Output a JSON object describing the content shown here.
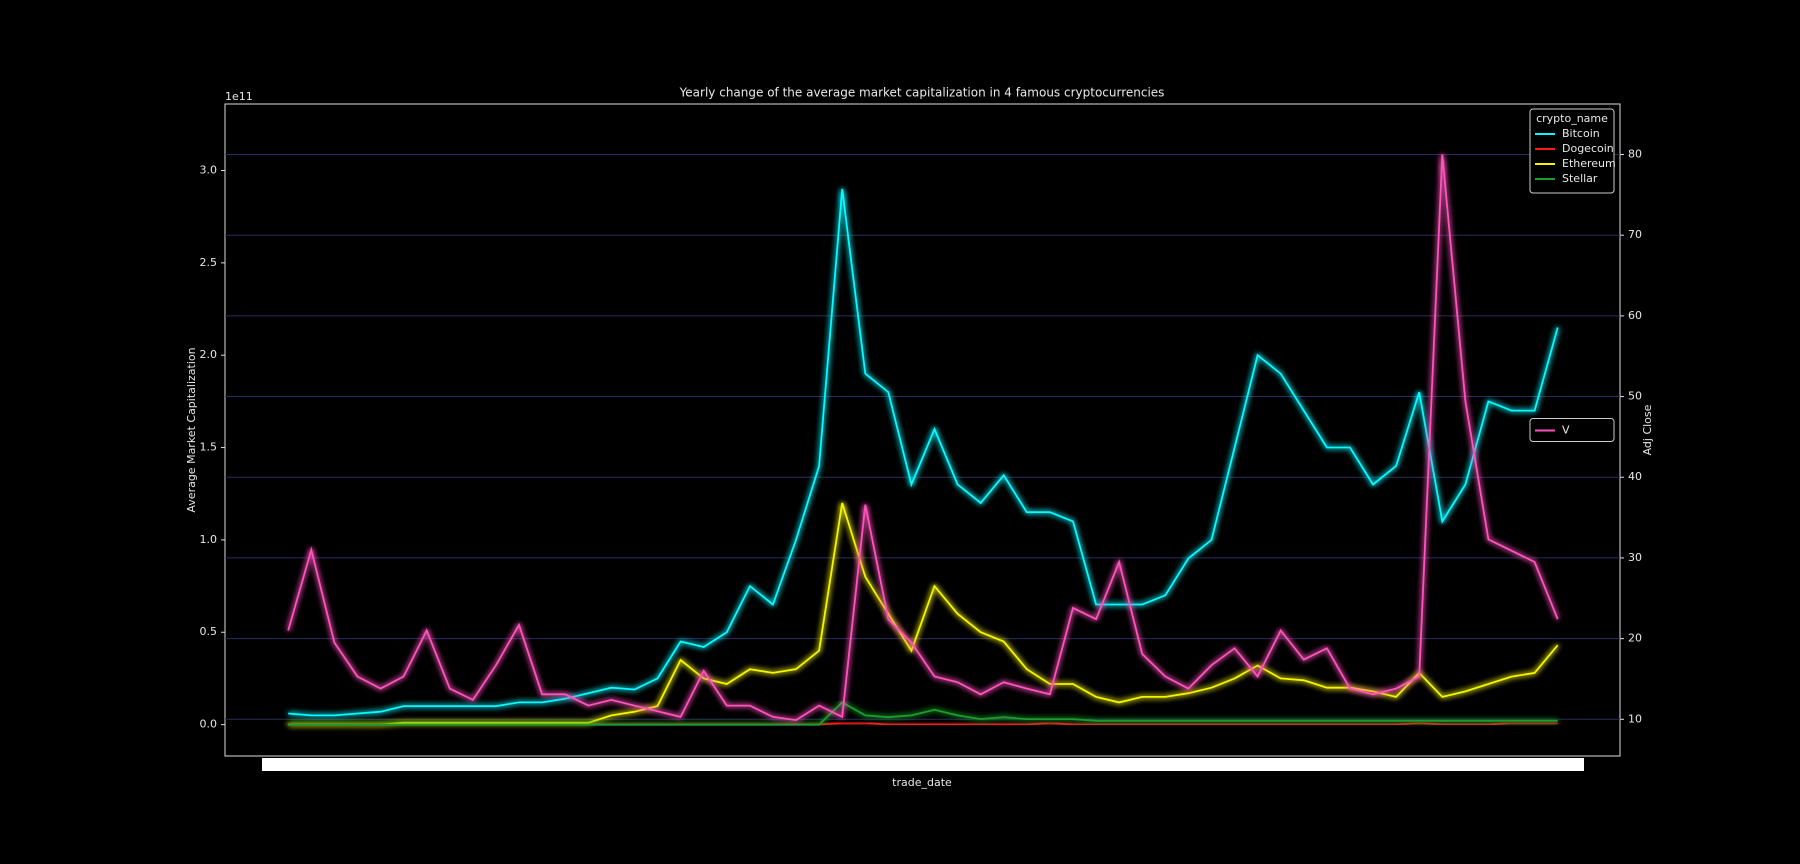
{
  "chart_data": {
    "type": "line",
    "title": "Yearly change of the average market capitalization in 4 famous cryptocurrencies",
    "xlabel": "trade_date",
    "ylabel": "Average Market Capitalization",
    "y2label": "Adj Close",
    "y_offset_label": "1e11",
    "legend_title": "crypto_name",
    "legend_loc": "upper right",
    "legend2_loc": "center right",
    "grid": true,
    "x": [
      0,
      1,
      2,
      3,
      4,
      5,
      6,
      7,
      8,
      9,
      10,
      11,
      12,
      13,
      14,
      15,
      16,
      17,
      18,
      19,
      20,
      21,
      22,
      23,
      24,
      25,
      26,
      27,
      28,
      29,
      30,
      31,
      32,
      33,
      34,
      35,
      36,
      37,
      38,
      39,
      40,
      41,
      42,
      43,
      44,
      45,
      46,
      47,
      48,
      49,
      50,
      51,
      52,
      53,
      54,
      55
    ],
    "xlim": [
      -2.74,
      57.7
    ],
    "ylim": [
      -0.17,
      3.36
    ],
    "yticks": [
      {
        "value": 0,
        "label": "0.0"
      },
      {
        "value": 0.5,
        "label": "0.5"
      },
      {
        "value": 1,
        "label": "1.0"
      },
      {
        "value": 1.5,
        "label": "1.5"
      },
      {
        "value": 2,
        "label": "2.0"
      },
      {
        "value": 2.5,
        "label": "2.5"
      },
      {
        "value": 3,
        "label": "3.0"
      }
    ],
    "y2lim": [
      5.45,
      86.26
    ],
    "y2ticks": [
      10,
      20,
      30,
      40,
      50,
      60,
      70,
      80
    ],
    "series": [
      {
        "name": "Bitcoin",
        "color": "#08f7fe",
        "values": [
          0.06,
          0.05,
          0.05,
          0.06,
          0.07,
          0.1,
          0.1,
          0.1,
          0.1,
          0.1,
          0.12,
          0.12,
          0.14,
          0.17,
          0.2,
          0.19,
          0.25,
          0.45,
          0.42,
          0.5,
          0.75,
          0.65,
          1.0,
          1.4,
          2.9,
          1.9,
          1.8,
          1.3,
          1.6,
          1.3,
          1.2,
          1.35,
          1.15,
          1.15,
          1.1,
          0.65,
          0.65,
          0.65,
          0.7,
          0.9,
          1.0,
          1.5,
          2.0,
          1.9,
          1.7,
          1.5,
          1.5,
          1.3,
          1.4,
          1.8,
          1.1,
          1.3,
          1.75,
          1.7,
          1.7,
          2.15
        ]
      },
      {
        "name": "Dogecoin",
        "color": "#ff1a1a",
        "values": [
          0,
          0,
          0,
          0,
          0,
          0,
          0,
          0,
          0,
          0,
          0,
          0,
          0,
          0,
          0,
          0,
          0,
          0,
          0,
          0,
          0,
          0,
          0,
          0,
          0.01,
          0.01,
          0,
          0,
          0,
          0,
          0,
          0,
          0,
          0.01,
          0,
          0,
          0,
          0,
          0,
          0,
          0,
          0,
          0,
          0,
          0,
          0,
          0,
          0,
          0,
          0.01,
          0,
          0,
          0,
          0.01,
          0.01,
          0.01
        ]
      },
      {
        "name": "Ethereum",
        "color": "#f5f500",
        "values": [
          0,
          0,
          0,
          0,
          0,
          0.01,
          0.01,
          0.01,
          0.01,
          0.01,
          0.01,
          0.01,
          0.01,
          0.01,
          0.05,
          0.07,
          0.1,
          0.35,
          0.25,
          0.22,
          0.3,
          0.28,
          0.3,
          0.4,
          1.2,
          0.8,
          0.6,
          0.4,
          0.75,
          0.6,
          0.5,
          0.45,
          0.3,
          0.22,
          0.22,
          0.15,
          0.12,
          0.15,
          0.15,
          0.17,
          0.2,
          0.25,
          0.32,
          0.25,
          0.24,
          0.2,
          0.2,
          0.18,
          0.15,
          0.28,
          0.15,
          0.18,
          0.22,
          0.26,
          0.28,
          0.43
        ]
      },
      {
        "name": "Stellar",
        "color": "#1f9c2f",
        "values": [
          0,
          0,
          0,
          0,
          0,
          0,
          0,
          0,
          0,
          0,
          0,
          0,
          0,
          0,
          0,
          0,
          0,
          0,
          0,
          0,
          0,
          0,
          0,
          0,
          0.12,
          0.05,
          0.04,
          0.05,
          0.08,
          0.05,
          0.03,
          0.04,
          0.03,
          0.03,
          0.03,
          0.02,
          0.02,
          0.02,
          0.02,
          0.02,
          0.02,
          0.02,
          0.02,
          0.02,
          0.02,
          0.02,
          0.02,
          0.02,
          0.02,
          0.02,
          0.02,
          0.02,
          0.02,
          0.02,
          0.02,
          0.02
        ]
      },
      {
        "name": "V",
        "color": "#fe53bb",
        "axis": "y2",
        "values": [
          21,
          31,
          19.5,
          15.3,
          13.8,
          15.3,
          21,
          13.8,
          12.4,
          16.7,
          21.7,
          13.1,
          13.1,
          11.7,
          12.4,
          11.7,
          11,
          10.3,
          16,
          11.7,
          11.7,
          10.3,
          9.9,
          11.7,
          10.3,
          36.6,
          22.4,
          19.5,
          15.3,
          14.6,
          13.1,
          14.6,
          13.8,
          13.1,
          23.8,
          22.4,
          29.5,
          18.1,
          15.3,
          13.8,
          16.7,
          18.8,
          15.3,
          21,
          17.4,
          18.8,
          13.8,
          13.1,
          13.8,
          15.3,
          80,
          49.4,
          32.3,
          30.9,
          29.5,
          22.4
        ]
      }
    ]
  }
}
